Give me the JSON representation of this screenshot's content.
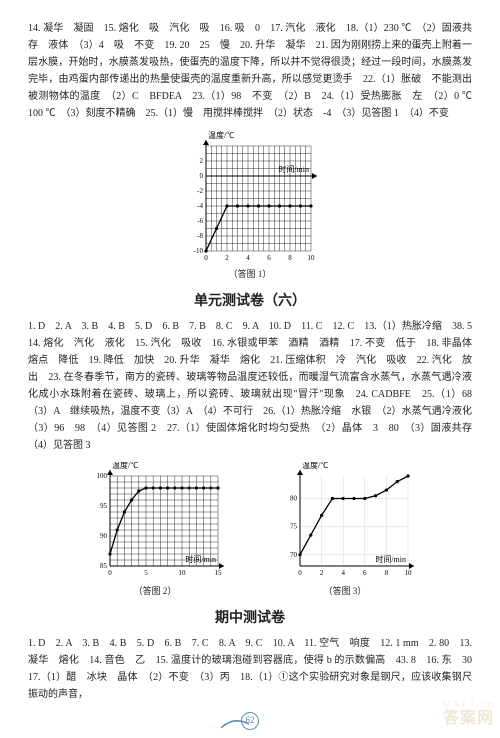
{
  "block1": {
    "text": "14. 凝华　凝固　15. 熔化　吸　汽化　吸　16. 吸　0　17. 汽化　液化　18.（1）230 ℃　（2）固液共存　液体　（3）4　吸　不变　19. 20　25　慢　20. 升华　凝华　21. 因为刚刚捞上来的蛋壳上附着一层水膜，开始时，水膜蒸发吸热，使蛋壳的温度下降，所以并不觉得很烫；经过一段时间，水膜蒸发完毕，由鸡蛋内部传递出的热量使蛋壳的温度重新升高，所以感觉更烫手　22.（1）胀破　不能测出被测物体的温度　（2）C　BFDEA　23.（1）98　不变　（2）B　24.（1）受热膨胀　左　（2）0 ℃　100 ℃　（3）刻度不精确　25.（1）慢　用搅拌棒搅拌　（2）状态　-4　（3）见答图 1　（4）不变"
  },
  "chart1": {
    "caption": "（答图 1）",
    "ylabel": "温度/℃",
    "xlabel": "时间/min",
    "xlim": [
      0,
      10
    ],
    "ylim": [
      -10,
      4
    ],
    "xticks": [
      0,
      2,
      4,
      6,
      8,
      10
    ],
    "yticks": [
      -10,
      -8,
      -6,
      -4,
      -2,
      0,
      2
    ],
    "data_x": [
      0,
      1,
      2,
      3,
      4,
      5,
      6,
      7,
      8,
      9,
      10
    ],
    "data_y": [
      -10,
      -7,
      -4,
      -4,
      -4,
      -4,
      -4,
      -4,
      -4,
      -4,
      -4
    ],
    "line_color": "#000000",
    "grid_color": "#000000",
    "bg_color": "#ffffff"
  },
  "section6_title": "单元测试卷（六）",
  "block2": {
    "text": "1. D　2. A　3. B　4. B　5. D　6. B　7. B　8. C　9. A　10. D　11. C　12. C　13.（1）热胀冷缩　38. 5　14. 熔化　汽化　液化　15. 汽化　吸收　16. 水银或甲苯　酒精　酒精　17. 不变　低于　18. 非晶体　熔点　降低　19. 降低　加快　20. 升华　凝华　熔化　21. 压缩体积　冷　汽化　吸收　22. 汽化　放出　23. 在冬春季节，南方的瓷砖、玻璃等物品温度还较低，而暖湿气流富含水蒸气，水蒸气遇冷液化成小水珠附着在瓷砖、玻璃上，所以瓷砖、玻璃就出现\"冒汗\"现象　24. CADBFE　25.（1）68　（3）A　继续吸热，温度不变（3）A　（4）不可行　26.（1）热胀冷缩　水银　（2）水蒸气遇冷液化　（3）96　98　（4）见答图 2　27.（1）使固体熔化时均匀受热　（2）晶体　3　80　（3）固液共存　（4）见答图 3"
  },
  "chart2": {
    "caption": "（答图 2）",
    "ylabel": "温度/℃",
    "xlabel": "时间/min",
    "xlim": [
      0,
      15
    ],
    "ylim": [
      85,
      100
    ],
    "xticks": [
      0,
      5,
      10,
      15
    ],
    "yticks": [
      85,
      90,
      95,
      100
    ],
    "data_x": [
      0,
      1,
      2,
      3,
      4,
      5,
      6,
      7,
      8,
      9,
      10,
      11,
      12,
      13,
      14,
      15
    ],
    "data_y": [
      87,
      91,
      94,
      96,
      97.5,
      98,
      98,
      98,
      98,
      98,
      98,
      98,
      98,
      98,
      98,
      98
    ],
    "line_color": "#000000",
    "grid_color": "#000000"
  },
  "chart3": {
    "caption": "（答图 3）",
    "ylabel": "温度/℃",
    "xlabel": "时间/min",
    "xlim": [
      0,
      10
    ],
    "ylim": [
      68,
      84
    ],
    "xticks": [
      0,
      2,
      4,
      6,
      8,
      10
    ],
    "yticks": [
      70,
      75,
      80
    ],
    "data_x": [
      0,
      1,
      2,
      3,
      4,
      5,
      6,
      7,
      8,
      9,
      10
    ],
    "data_y": [
      70,
      73.5,
      77,
      80,
      80,
      80,
      80,
      80.5,
      81.5,
      83,
      84
    ],
    "line_color": "#000000",
    "grid_color": "#cccccc"
  },
  "midterm_title": "期中测试卷",
  "block3": {
    "text": "1. D　2. A　3. B　4. B　5. D　6. B　7. C　8. A　9. C　10. A　11. 空气　响度　12. 1 mm　2. 80　13. 凝华　熔化　14. 音色　乙　15. 温度计的玻璃泡碰到容器底，使得 b 的示数偏高　43. 8　16. 东　30　17.（1）醋　冰块　晶体　（2）不变　（3）丙　18.（1）①这个实验研究对象是钢尺，应该收集钢尺振动的声音，"
  },
  "page_number": "62",
  "watermark": "答案网",
  "watermark_sub": "M X E 7 . c m"
}
